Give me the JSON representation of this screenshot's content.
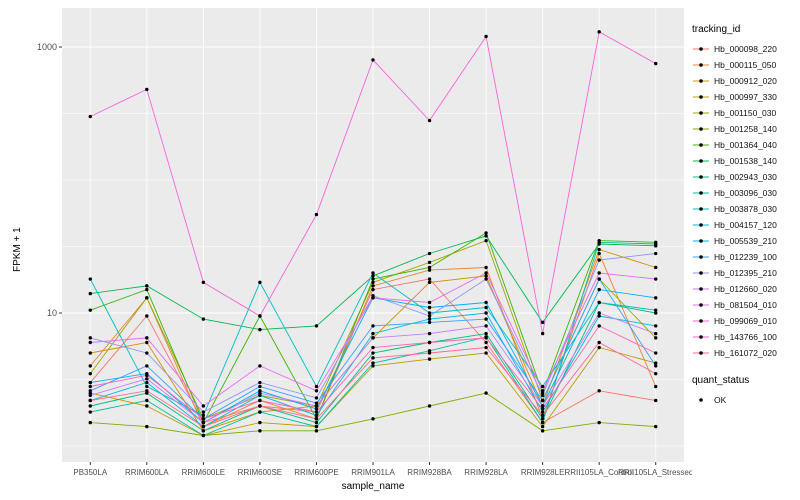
{
  "chart_data": {
    "type": "line",
    "title": "",
    "xlabel": "sample_name",
    "ylabel": "FPKM + 1",
    "y_scale": "log10",
    "y_ticks": [
      10,
      1000
    ],
    "y_tick_labels": [
      "10",
      "1000"
    ],
    "y_minor": [
      1,
      3.162,
      31.62,
      100,
      316.2
    ],
    "ylim": [
      0.9,
      1900
    ],
    "panel_bg": "#EBEBEB",
    "grid_color": "#FFFFFF",
    "axis_text_color": "#4D4D4D",
    "point_color": "#000000",
    "legend_position": "right",
    "categories": [
      "PB350LA",
      "RRIM600LA",
      "RRIM600LE",
      "RRIM600SE",
      "RRIM600PE",
      "RRIM901LA",
      "RRIM928BA",
      "RRIM928LA",
      "RRIM928LE",
      "RRII105LA_Control",
      "RRII105LA_Stressed"
    ],
    "legend": {
      "color_title": "tracking_id",
      "shape_title": "quant_status",
      "shape_items": [
        {
          "label": "OK"
        }
      ]
    },
    "series": [
      {
        "name": "Hb_000098_220",
        "color": "#F8766D",
        "values": [
          3.0,
          9.5,
          1.5,
          2.0,
          1.8,
          15,
          18,
          6.0,
          1.5,
          2.6,
          2.2
        ]
      },
      {
        "name": "Hb_000115_050",
        "color": "#EA8331",
        "values": [
          4.0,
          13,
          1.4,
          2.2,
          1.6,
          16,
          21,
          22,
          1.6,
          28,
          2.8
        ]
      },
      {
        "name": "Hb_000912_020",
        "color": "#D89000",
        "values": [
          5.0,
          6.0,
          1.3,
          1.8,
          2.0,
          6.5,
          17,
          19,
          2.0,
          30,
          22
        ]
      },
      {
        "name": "Hb_000997_330",
        "color": "#C09B00",
        "values": [
          2.5,
          2.0,
          1.2,
          1.5,
          1.4,
          4.0,
          4.5,
          5.0,
          1.4,
          5.5,
          4.2
        ]
      },
      {
        "name": "Hb_001150_030",
        "color": "#A3A500",
        "values": [
          3.5,
          13,
          1.6,
          2.4,
          2.0,
          17,
          24,
          35,
          2.2,
          18,
          6.5
        ]
      },
      {
        "name": "Hb_001258_140",
        "color": "#7CAE00",
        "values": [
          1.5,
          1.4,
          1.2,
          1.3,
          1.3,
          1.6,
          2.0,
          2.5,
          1.3,
          1.5,
          1.4
        ]
      },
      {
        "name": "Hb_001364_040",
        "color": "#39B600",
        "values": [
          10.5,
          15,
          1.5,
          9.5,
          1.6,
          18,
          22,
          40,
          2.5,
          35,
          34
        ]
      },
      {
        "name": "Hb_001538_140",
        "color": "#00BB4E",
        "values": [
          14,
          16,
          9.0,
          7.5,
          8.0,
          19,
          28,
          38,
          8.5,
          33,
          32
        ]
      },
      {
        "name": "Hb_002943_030",
        "color": "#00BF7D",
        "values": [
          2.0,
          2.5,
          1.3,
          2.0,
          1.5,
          5.0,
          6.0,
          7.0,
          1.6,
          12,
          10
        ]
      },
      {
        "name": "Hb_003096_030",
        "color": "#00C1A3",
        "values": [
          1.8,
          2.2,
          1.2,
          1.8,
          1.4,
          4.2,
          5.2,
          6.6,
          1.5,
          34,
          33
        ]
      },
      {
        "name": "Hb_003878_030",
        "color": "#00BFC4",
        "values": [
          18,
          2.8,
          1.7,
          17,
          2.8,
          20,
          10,
          11,
          2.8,
          12,
          10.5
        ]
      },
      {
        "name": "Hb_004157_120",
        "color": "#00BAE0",
        "values": [
          2.2,
          3.0,
          1.4,
          2.4,
          1.7,
          7.0,
          9.0,
          10,
          1.8,
          9.5,
          8.0
        ]
      },
      {
        "name": "Hb_005539_210",
        "color": "#00B0F6",
        "values": [
          3.0,
          3.5,
          1.5,
          2.6,
          1.9,
          13,
          11,
          12,
          2.0,
          15,
          13
        ]
      },
      {
        "name": "Hb_012239_100",
        "color": "#35A2FF",
        "values": [
          2.6,
          4.0,
          1.6,
          2.8,
          2.1,
          8.0,
          8.5,
          9.0,
          2.2,
          18,
          4.0
        ]
      },
      {
        "name": "Hb_012395_210",
        "color": "#9590FF",
        "values": [
          6.5,
          5.0,
          1.8,
          3.0,
          2.3,
          13.5,
          9.5,
          18,
          2.4,
          25,
          28
        ]
      },
      {
        "name": "Hb_012660_020",
        "color": "#C77CFF",
        "values": [
          2.4,
          3.2,
          1.5,
          2.5,
          2.0,
          6.5,
          7.0,
          8.0,
          2.0,
          10,
          7.0
        ]
      },
      {
        "name": "Hb_081504_010",
        "color": "#E76BF3",
        "values": [
          6.0,
          6.5,
          2.0,
          4.0,
          2.6,
          13,
          12,
          20,
          2.6,
          20,
          18
        ]
      },
      {
        "name": "Hb_099069_010",
        "color": "#FA62DB",
        "values": [
          300,
          480,
          17,
          9.5,
          55,
          800,
          280,
          1200,
          7.0,
          1300,
          750
        ]
      },
      {
        "name": "Hb_143766_100",
        "color": "#FF62BC",
        "values": [
          2.8,
          3.4,
          1.6,
          2.2,
          1.8,
          5.5,
          6.0,
          6.5,
          1.9,
          8.0,
          5.0
        ]
      },
      {
        "name": "Hb_161072_020",
        "color": "#FF6A98",
        "values": [
          2.2,
          2.6,
          1.4,
          2.0,
          1.6,
          4.6,
          5.0,
          5.5,
          1.7,
          6.0,
          3.5
        ]
      }
    ]
  }
}
